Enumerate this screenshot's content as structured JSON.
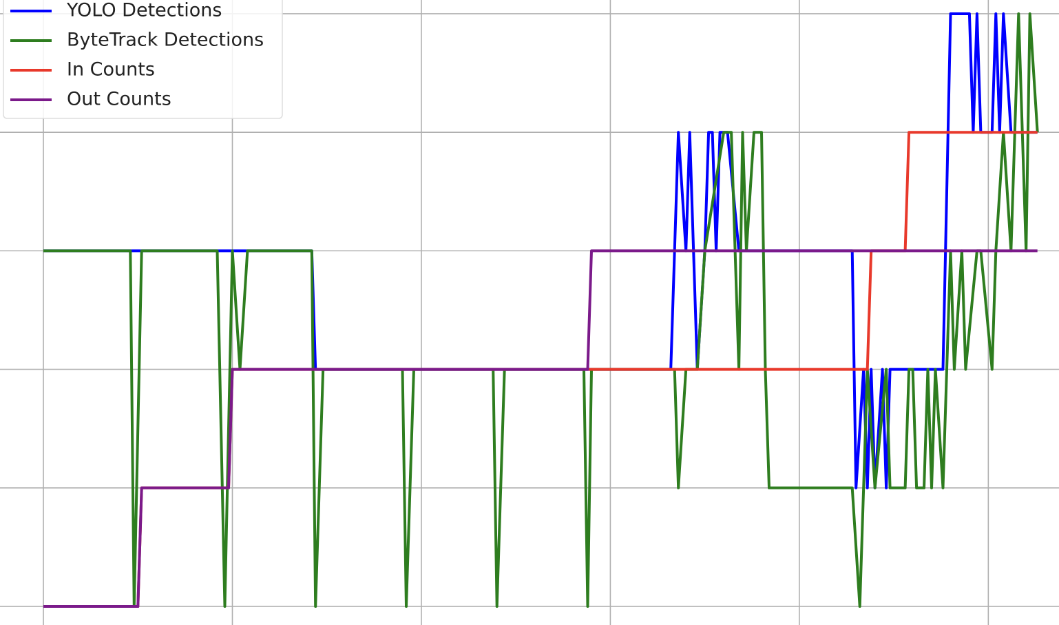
{
  "chart_data": {
    "type": "line",
    "series": [
      {
        "name": "YOLO Detections",
        "color": "#0000ff",
        "x": [
          0,
          71,
          72,
          166,
          168,
          170,
          171,
          173,
          175,
          176,
          177,
          178,
          179,
          181,
          184,
          190,
          214,
          215,
          217,
          218,
          219,
          220,
          222,
          223,
          224,
          238,
          240,
          245,
          246,
          247,
          248,
          251,
          252,
          253,
          254,
          256,
          263
        ],
        "values": [
          3,
          3,
          2,
          2,
          4,
          3,
          4,
          2,
          3,
          4,
          4,
          3,
          4,
          4,
          3,
          3,
          3,
          1,
          2,
          1,
          2,
          1,
          2,
          1,
          2,
          2,
          5,
          5,
          4,
          5,
          4,
          4,
          5,
          4,
          5,
          4,
          4
        ]
      },
      {
        "name": "ByteTrack Detections",
        "color": "#2e7d1f",
        "x": [
          0,
          23,
          24,
          26,
          46,
          48,
          50,
          52,
          54,
          71,
          72,
          74,
          95,
          96,
          98,
          119,
          120,
          122,
          143,
          144,
          145,
          167,
          168,
          170,
          173,
          175,
          180,
          182,
          184,
          185,
          186,
          188,
          190,
          191,
          192,
          214,
          216,
          218,
          220,
          223,
          224,
          228,
          229,
          230,
          231,
          233,
          234,
          235,
          236,
          238,
          240,
          241,
          243,
          244,
          247,
          248,
          251,
          252,
          254,
          256,
          258,
          260,
          261,
          263
        ],
        "values": [
          3,
          3,
          0,
          3,
          3,
          0,
          3,
          2,
          3,
          3,
          0,
          2,
          2,
          0,
          2,
          2,
          0,
          2,
          2,
          0,
          2,
          2,
          1,
          2,
          2,
          3,
          4,
          4,
          2,
          4,
          3,
          4,
          4,
          2,
          1,
          1,
          0,
          2,
          1,
          2,
          1,
          1,
          2,
          2,
          1,
          1,
          2,
          1,
          2,
          1,
          3,
          2,
          3,
          2,
          3,
          3,
          2,
          3,
          4,
          3,
          5,
          3,
          5,
          4
        ]
      },
      {
        "name": "In Counts",
        "color": "#e8392b",
        "x": [
          0,
          25,
          26,
          49,
          50,
          218,
          219,
          228,
          229,
          263
        ],
        "values": [
          0,
          0,
          1,
          1,
          2,
          2,
          3,
          3,
          4,
          4
        ]
      },
      {
        "name": "Out Counts",
        "color": "#7b1a8a",
        "x": [
          0,
          25,
          26,
          49,
          50,
          144,
          145,
          263
        ],
        "values": [
          0,
          0,
          1,
          1,
          2,
          2,
          3,
          3
        ]
      }
    ],
    "xlim": [
      -11.48,
      268.7
    ],
    "ylim": [
      -0.157,
      5.116
    ],
    "xticks": [
      0,
      50,
      100,
      150,
      200,
      250
    ],
    "yticks": [
      0,
      1,
      2,
      3,
      4,
      5
    ],
    "grid": true,
    "legend": "upper left"
  }
}
